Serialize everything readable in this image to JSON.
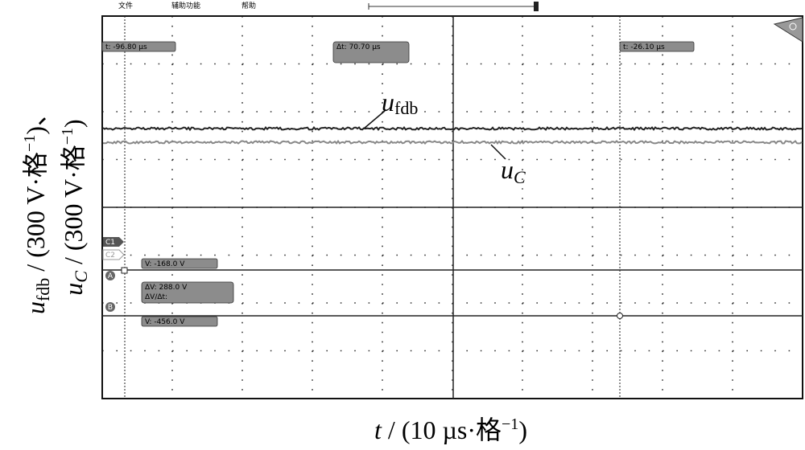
{
  "menu": [
    "文件",
    "辅助功能",
    "帮助"
  ],
  "cursors": {
    "t1": "t:   -96.80 µs",
    "dt": "Δt:  70.70 µs",
    "t2": "t:   -26.10 µs",
    "v1": "V:   -168.0 V",
    "dv": "ΔV:      288.0 V",
    "dvdt": "ΔV/Δt:",
    "v2": "V:   -456.0 V"
  },
  "markers": {
    "c1": "C1",
    "c2": "C2",
    "a": "A",
    "b": "B"
  },
  "traces": [
    {
      "var": "u",
      "sub": "fdb"
    },
    {
      "var": "u",
      "sub": "C"
    }
  ],
  "y_axis_label": [
    {
      "var": "u",
      "sub": "fdb",
      "unit": " / (300 V·格",
      "exp": "−1",
      "tail": ")、"
    },
    {
      "var": "u",
      "sub": "C",
      "unit": " / (300 V·格",
      "exp": "−1",
      "tail": ")"
    }
  ],
  "x_axis_label": {
    "var": "t",
    "unit": " / (10 µs·格",
    "exp": "−1",
    "tail": ")"
  }
}
